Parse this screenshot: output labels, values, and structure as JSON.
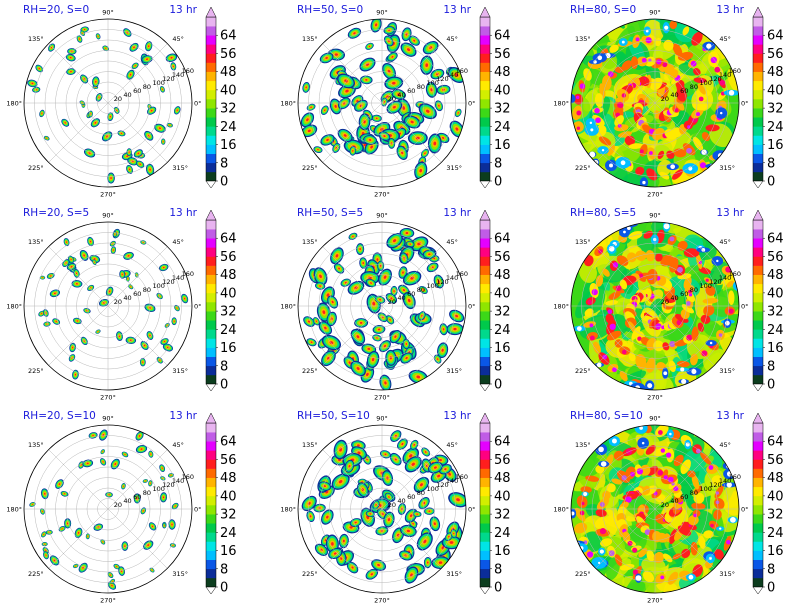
{
  "chart_data": {
    "type": "heatmap",
    "layout": "3x3 grid of polar plots, each with a colorbar",
    "colorbar": {
      "levels": [
        0,
        4,
        8,
        12,
        16,
        20,
        24,
        28,
        32,
        36,
        40,
        44,
        48,
        52,
        56,
        60,
        64,
        68
      ],
      "tick_labels": [
        "0",
        "8",
        "16",
        "24",
        "32",
        "40",
        "48",
        "56",
        "64"
      ],
      "extend": "both",
      "colors": [
        "#0c3d1e",
        "#0b2d99",
        "#0a57e6",
        "#00bfff",
        "#00e5e5",
        "#00d98c",
        "#00c94b",
        "#3cd818",
        "#8fe600",
        "#d2ee00",
        "#ffea00",
        "#ffb400",
        "#ff6a00",
        "#ff1e1e",
        "#ff0080",
        "#e400ff",
        "#c05ce6",
        "#e8b4f0"
      ]
    },
    "angular_tick_labels": [
      "0°",
      "45°",
      "90°",
      "135°",
      "180°",
      "225°",
      "270°",
      "315°"
    ],
    "radial_tick_labels": [
      "20",
      "40",
      "60",
      "80",
      "100",
      "120",
      "140",
      "160"
    ],
    "panels": [
      {
        "title": "RH=20, S=0",
        "time": "13 hr",
        "RH": 20,
        "S": 0,
        "coverage": "sparse"
      },
      {
        "title": "RH=50, S=0",
        "time": "13 hr",
        "RH": 50,
        "S": 0,
        "coverage": "moderate"
      },
      {
        "title": "RH=80, S=0",
        "time": "13 hr",
        "RH": 80,
        "S": 0,
        "coverage": "full"
      },
      {
        "title": "RH=20, S=5",
        "time": "13 hr",
        "RH": 20,
        "S": 5,
        "coverage": "sparse"
      },
      {
        "title": "RH=50, S=5",
        "time": "13 hr",
        "RH": 50,
        "S": 5,
        "coverage": "moderate"
      },
      {
        "title": "RH=80, S=5",
        "time": "13 hr",
        "RH": 80,
        "S": 5,
        "coverage": "full"
      },
      {
        "title": "RH=20, S=10",
        "time": "13 hr",
        "RH": 20,
        "S": 10,
        "coverage": "sparse"
      },
      {
        "title": "RH=50, S=10",
        "time": "13 hr",
        "RH": 50,
        "S": 10,
        "coverage": "moderate"
      },
      {
        "title": "RH=80, S=10",
        "time": "13 hr",
        "RH": 80,
        "S": 10,
        "coverage": "full"
      }
    ]
  }
}
